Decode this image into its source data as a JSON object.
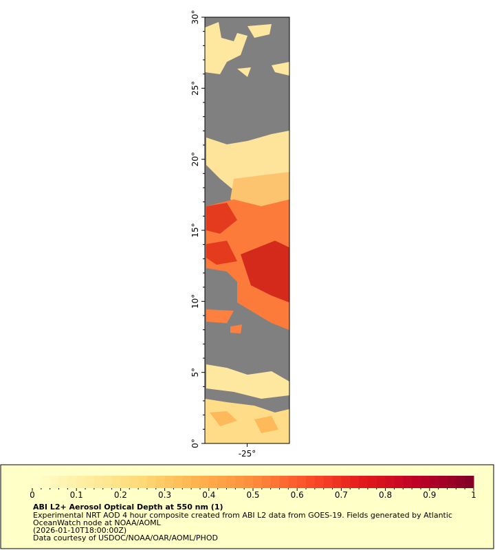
{
  "map": {
    "xlim": [
      -28,
      -22
    ],
    "ylim": [
      0,
      30
    ],
    "xticks": [
      {
        "value": -25,
        "label": "-25°"
      }
    ],
    "yticks": [
      {
        "value": 0,
        "label": "0°"
      },
      {
        "value": 5,
        "label": "5°"
      },
      {
        "value": 10,
        "label": "10°"
      },
      {
        "value": 15,
        "label": "15°"
      },
      {
        "value": 20,
        "label": "20°"
      },
      {
        "value": 25,
        "label": "25°"
      },
      {
        "value": 30,
        "label": "30°"
      }
    ]
  },
  "colorbar": {
    "range": [
      0,
      1
    ],
    "ticks": [
      0,
      0.1,
      0.2,
      0.3,
      0.4,
      0.5,
      0.6,
      0.7,
      0.8,
      0.9,
      1
    ],
    "colors": [
      "#ffffcc",
      "#ffeda0",
      "#fed976",
      "#feb24c",
      "#fd8d3c",
      "#fc4e2a",
      "#e31a1c",
      "#bd0026",
      "#800026"
    ]
  },
  "legend": {
    "title": "ABI L2+ Aerosol Optical Depth at 550 nm (1)",
    "lines": [
      "Experimental NRT AOD 4 hour composite created from ABI L2 data from GOES-19. Fields generated by Atlantic",
      "OceanWatch node at NOAA/AOML",
      "(2026-01-10T18:00:00Z)",
      "Data courtesy of USDOC/NOAA/OAR/AOML/PHOD"
    ]
  }
}
